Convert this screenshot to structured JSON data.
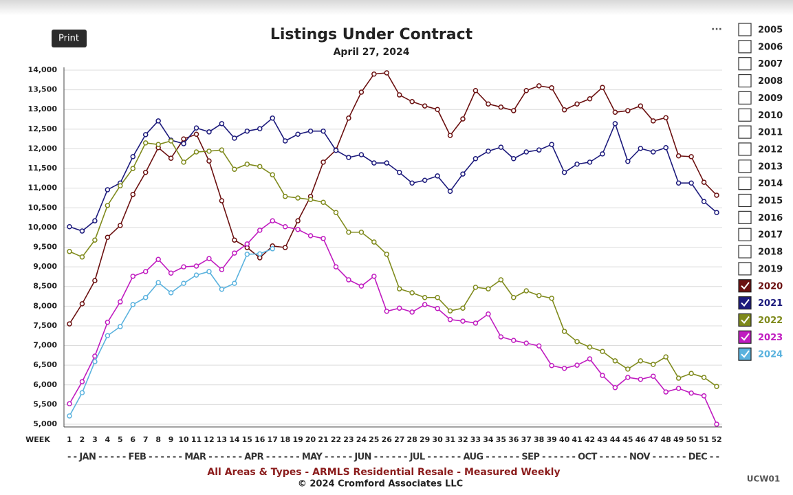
{
  "button": "Print",
  "menu": "···",
  "chart_data": {
    "type": "line",
    "title": "Listings Under Contract",
    "subtitle": "April 27, 2024",
    "x_label": "WEEK",
    "months_label": "- - JAN - - - - - FEB - - - - - - MAR - - - - - - APR - - - - - - MAY - - - - - JUN - - - - - - JUL - - - - - - AUG - - - - - - SEP - - - - - - OCT - - - - - NOV - - - - - - DEC - -",
    "footer": "All Areas & Types - ARMLS Residential Resale - Measured Weekly",
    "copyright": "© 2024 Cromford Associates LLC",
    "code": "UCW01",
    "categories": [
      "1",
      "2",
      "3",
      "4",
      "5",
      "6",
      "7",
      "8",
      "9",
      "10",
      "11",
      "12",
      "13",
      "14",
      "15",
      "16",
      "17",
      "18",
      "19",
      "20",
      "21",
      "22",
      "23",
      "24",
      "25",
      "26",
      "27",
      "28",
      "29",
      "30",
      "31",
      "32",
      "33",
      "34",
      "35",
      "36",
      "37",
      "38",
      "39",
      "40",
      "41",
      "42",
      "43",
      "44",
      "45",
      "46",
      "47",
      "48",
      "49",
      "50",
      "51",
      "52"
    ],
    "ylim": [
      5000,
      14000
    ],
    "yticks": [
      {
        "value": 5000,
        "label": "5,000"
      },
      {
        "value": 5500,
        "label": "5,500"
      },
      {
        "value": 6000,
        "label": "6,000"
      },
      {
        "value": 6500,
        "label": "6,500"
      },
      {
        "value": 7000,
        "label": "7,000"
      },
      {
        "value": 7500,
        "label": "7,500"
      },
      {
        "value": 8000,
        "label": "8,000"
      },
      {
        "value": 8500,
        "label": "8,500"
      },
      {
        "value": 9000,
        "label": "9,000"
      },
      {
        "value": 9500,
        "label": "9,500"
      },
      {
        "value": 10000,
        "label": "10,000"
      },
      {
        "value": 10500,
        "label": "10,500"
      },
      {
        "value": 11000,
        "label": "11,000"
      },
      {
        "value": 11500,
        "label": "11,500"
      },
      {
        "value": 12000,
        "label": "12,000"
      },
      {
        "value": 12500,
        "label": "12,500"
      },
      {
        "value": 13000,
        "label": "13,000"
      },
      {
        "value": 13500,
        "label": "13,500"
      },
      {
        "value": 14000,
        "label": "14,000"
      }
    ],
    "grid": true,
    "unchecked_years": [
      "2005",
      "2006",
      "2007",
      "2008",
      "2009",
      "2010",
      "2011",
      "2012",
      "2013",
      "2014",
      "2015",
      "2016",
      "2017",
      "2018",
      "2019"
    ],
    "series": [
      {
        "name": "2020",
        "color": "#6b1010",
        "values": [
          7550,
          8060,
          8650,
          9750,
          10050,
          10840,
          11400,
          12030,
          11760,
          12250,
          12370,
          11690,
          10680,
          9680,
          9490,
          9230,
          9530,
          9490,
          10170,
          10790,
          11660,
          11970,
          12780,
          13440,
          13900,
          13930,
          13370,
          13200,
          13090,
          13000,
          12340,
          12760,
          13480,
          13140,
          13060,
          12970,
          13480,
          13600,
          13550,
          12990,
          13140,
          13270,
          13560,
          12930,
          12970,
          13090,
          12710,
          12790,
          11820,
          11800,
          11150,
          10820
        ]
      },
      {
        "name": "2021",
        "color": "#1c1a7c",
        "values": [
          10020,
          9910,
          10170,
          10960,
          11130,
          11800,
          12360,
          12710,
          12220,
          12130,
          12530,
          12430,
          12640,
          12270,
          12450,
          12510,
          12780,
          12200,
          12370,
          12450,
          12450,
          11960,
          11780,
          11850,
          11640,
          11640,
          11400,
          11130,
          11200,
          11310,
          10920,
          11360,
          11750,
          11940,
          12040,
          11750,
          11920,
          11970,
          12110,
          11400,
          11610,
          11660,
          11870,
          12640,
          11680,
          12010,
          11920,
          12030,
          11130,
          11130,
          10660,
          10380
        ]
      },
      {
        "name": "2022",
        "color": "#7f8a1c",
        "values": [
          9390,
          9250,
          9680,
          10560,
          11060,
          11500,
          12150,
          12110,
          12200,
          11660,
          11920,
          11940,
          11970,
          11480,
          11610,
          11550,
          11340,
          10790,
          10750,
          10710,
          10640,
          10380,
          9880,
          9880,
          9630,
          9320,
          8440,
          8340,
          8220,
          8220,
          7880,
          7950,
          8480,
          8440,
          8670,
          8220,
          8390,
          8270,
          8200,
          7360,
          7100,
          6960,
          6850,
          6610,
          6400,
          6610,
          6520,
          6710,
          6170,
          6290,
          6190,
          5960
        ]
      },
      {
        "name": "2023",
        "color": "#c01cc0",
        "values": [
          5520,
          6080,
          6730,
          7590,
          8110,
          8760,
          8880,
          9190,
          8840,
          9000,
          9020,
          9210,
          8930,
          9350,
          9580,
          9930,
          10170,
          10020,
          9950,
          9790,
          9720,
          9000,
          8670,
          8510,
          8760,
          7870,
          7950,
          7850,
          8040,
          7940,
          7660,
          7620,
          7570,
          7800,
          7220,
          7130,
          7060,
          6990,
          6490,
          6420,
          6500,
          6660,
          6240,
          5930,
          6190,
          6140,
          6220,
          5820,
          5910,
          5790,
          5720,
          5000
        ]
      },
      {
        "name": "2024",
        "color": "#5ab2de",
        "values": [
          5210,
          5800,
          6590,
          7250,
          7480,
          8040,
          8220,
          8600,
          8340,
          8580,
          8790,
          8880,
          8430,
          8580,
          9320,
          9330,
          9460,
          null,
          null,
          null,
          null,
          null,
          null,
          null,
          null,
          null,
          null,
          null,
          null,
          null,
          null,
          null,
          null,
          null,
          null,
          null,
          null,
          null,
          null,
          null,
          null,
          null,
          null,
          null,
          null,
          null,
          null,
          null,
          null,
          null,
          null,
          null
        ]
      }
    ]
  }
}
